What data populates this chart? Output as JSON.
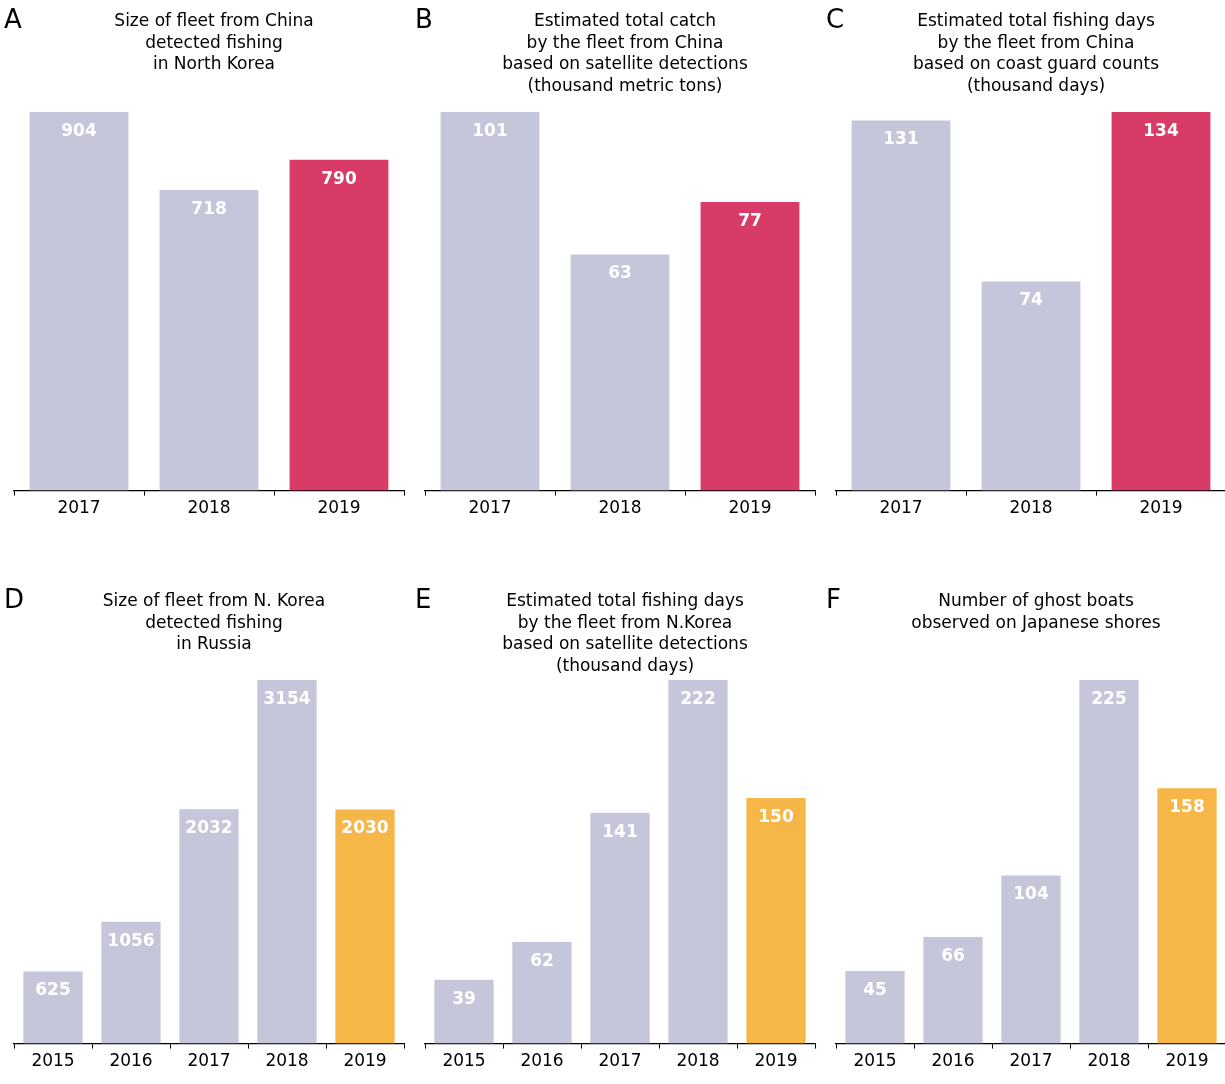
{
  "chart_data": [
    {
      "type": "bar",
      "title": "Size of fleet from China\ndetected fishing\nin North Korea",
      "categories": [
        "2017",
        "2018",
        "2019"
      ],
      "values": [
        904,
        718,
        790
      ],
      "colors": [
        "#c6c6da",
        "#c6c6da",
        "#d93b67"
      ],
      "data_labels": true,
      "annotations": [
        "A"
      ]
    },
    {
      "type": "bar",
      "title": "Estimated total catch\nby the fleet from China\nbased on satellite detections\n(thousand metric tons)",
      "categories": [
        "2017",
        "2018",
        "2019"
      ],
      "values": [
        101,
        63,
        77
      ],
      "colors": [
        "#c6c6da",
        "#c6c6da",
        "#d93b67"
      ],
      "data_labels": true,
      "annotations": [
        "B"
      ]
    },
    {
      "type": "bar",
      "title": "Estimated total fishing days\nby the fleet from China\nbased on coast guard counts\n(thousand days)",
      "categories": [
        "2017",
        "2018",
        "2019"
      ],
      "values": [
        131,
        74,
        134
      ],
      "colors": [
        "#c6c6da",
        "#c6c6da",
        "#d93b67"
      ],
      "data_labels": true,
      "annotations": [
        "C"
      ]
    },
    {
      "type": "bar",
      "title": "Size of fleet from N. Korea\ndetected fishing\nin Russia",
      "categories": [
        "2015",
        "2016",
        "2017",
        "2018",
        "2019"
      ],
      "values": [
        625,
        1056,
        2032,
        3154,
        2030
      ],
      "colors": [
        "#c6c6da",
        "#c6c6da",
        "#c6c6da",
        "#c6c6da",
        "#f7b748"
      ],
      "data_labels": true,
      "annotations": [
        "D"
      ]
    },
    {
      "type": "bar",
      "title": "Estimated total fishing days\nby the fleet from N.Korea\nbased on satellite detections\n(thousand days)",
      "categories": [
        "2015",
        "2016",
        "2017",
        "2018",
        "2019"
      ],
      "values": [
        39,
        62,
        141,
        222,
        150
      ],
      "colors": [
        "#c6c6da",
        "#c6c6da",
        "#c6c6da",
        "#c6c6da",
        "#f7b748"
      ],
      "data_labels": true,
      "annotations": [
        "E"
      ]
    },
    {
      "type": "bar",
      "title": "Number of ghost boats\nobserved on Japanese shores",
      "categories": [
        "2015",
        "2016",
        "2017",
        "2018",
        "2019"
      ],
      "values": [
        45,
        66,
        104,
        225,
        158
      ],
      "colors": [
        "#c6c6da",
        "#c6c6da",
        "#c6c6da",
        "#c6c6da",
        "#f7b748"
      ],
      "data_labels": true,
      "annotations": [
        "F"
      ]
    }
  ]
}
